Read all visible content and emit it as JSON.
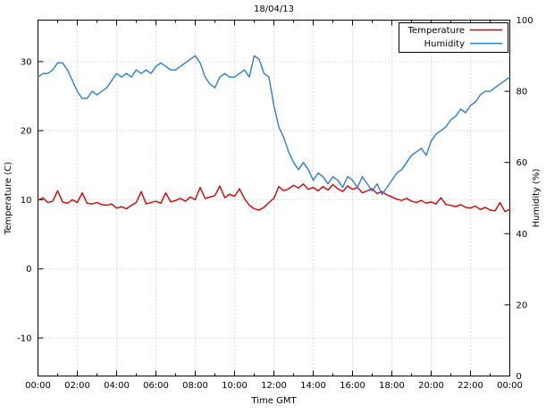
{
  "chart_data": {
    "type": "line",
    "title": "18/04/13",
    "xlabel": "Time GMT",
    "ylabel_left": "Temperature (C)",
    "ylabel_right": "Humidity (%)",
    "grid": true,
    "legend_position": "top-right",
    "x_start_hour": 0,
    "x_end_hour": 24,
    "x_step_hours": 0.25,
    "x_tick_hours": [
      0,
      2,
      4,
      6,
      8,
      10,
      12,
      14,
      16,
      18,
      20,
      22,
      24
    ],
    "x_tick_labels": [
      "00:00",
      "02:00",
      "04:00",
      "06:00",
      "08:00",
      "10:00",
      "12:00",
      "14:00",
      "16:00",
      "18:00",
      "20:00",
      "22:00",
      "00:00"
    ],
    "y_left_range": [
      -15.5,
      36
    ],
    "y_left_ticks": [
      -10,
      0,
      10,
      20,
      30
    ],
    "y_right_range": [
      0,
      100
    ],
    "y_right_ticks": [
      0,
      20,
      40,
      60,
      80,
      100
    ],
    "series": [
      {
        "name": "Temperature",
        "axis": "left",
        "color": "#d40000",
        "values": [
          9.9,
          10.3,
          9.6,
          9.8,
          11.3,
          9.7,
          9.5,
          10.0,
          9.6,
          11.0,
          9.5,
          9.4,
          9.6,
          9.3,
          9.2,
          9.4,
          8.8,
          9.0,
          8.7,
          9.2,
          9.6,
          11.2,
          9.4,
          9.6,
          9.8,
          9.5,
          11.0,
          9.7,
          9.9,
          10.2,
          9.8,
          10.4,
          10.0,
          11.8,
          10.2,
          10.4,
          10.6,
          12.0,
          10.3,
          10.8,
          10.5,
          11.6,
          10.2,
          9.2,
          8.7,
          8.5,
          8.9,
          9.6,
          10.2,
          11.9,
          11.3,
          11.6,
          12.1,
          11.7,
          12.3,
          11.5,
          11.8,
          11.3,
          11.9,
          11.4,
          12.2,
          11.6,
          11.2,
          12.0,
          11.5,
          11.8,
          11.0,
          11.3,
          11.6,
          10.9,
          11.2,
          10.7,
          10.4,
          10.1,
          9.9,
          10.2,
          9.8,
          9.6,
          9.9,
          9.5,
          9.7,
          9.4,
          10.3,
          9.3,
          9.2,
          9.0,
          9.3,
          8.9,
          8.8,
          9.1,
          8.6,
          8.9,
          8.5,
          8.4,
          9.6,
          8.3,
          8.6
        ]
      },
      {
        "name": "Humidity",
        "axis": "right",
        "color": "#2d7dd2",
        "values": [
          84,
          85,
          85,
          86,
          88,
          88,
          86,
          83,
          80,
          78,
          78,
          80,
          79,
          80,
          81,
          83,
          85,
          84,
          85,
          84,
          86,
          85,
          86,
          85,
          87,
          88,
          87,
          86,
          86,
          87,
          88,
          89,
          90,
          88,
          84,
          82,
          81,
          84,
          85,
          84,
          84,
          85,
          86,
          84,
          90,
          89,
          85,
          84,
          76,
          70,
          67,
          63,
          60,
          58,
          60,
          58,
          55,
          57,
          56,
          54,
          56,
          55,
          53,
          56,
          55,
          53,
          56,
          54,
          52,
          54,
          51,
          53,
          55,
          57,
          58,
          60,
          62,
          63,
          64,
          62,
          66,
          68,
          69,
          70,
          72,
          73,
          75,
          74,
          76,
          77,
          79,
          80,
          80,
          81,
          82,
          83,
          84
        ]
      }
    ]
  }
}
